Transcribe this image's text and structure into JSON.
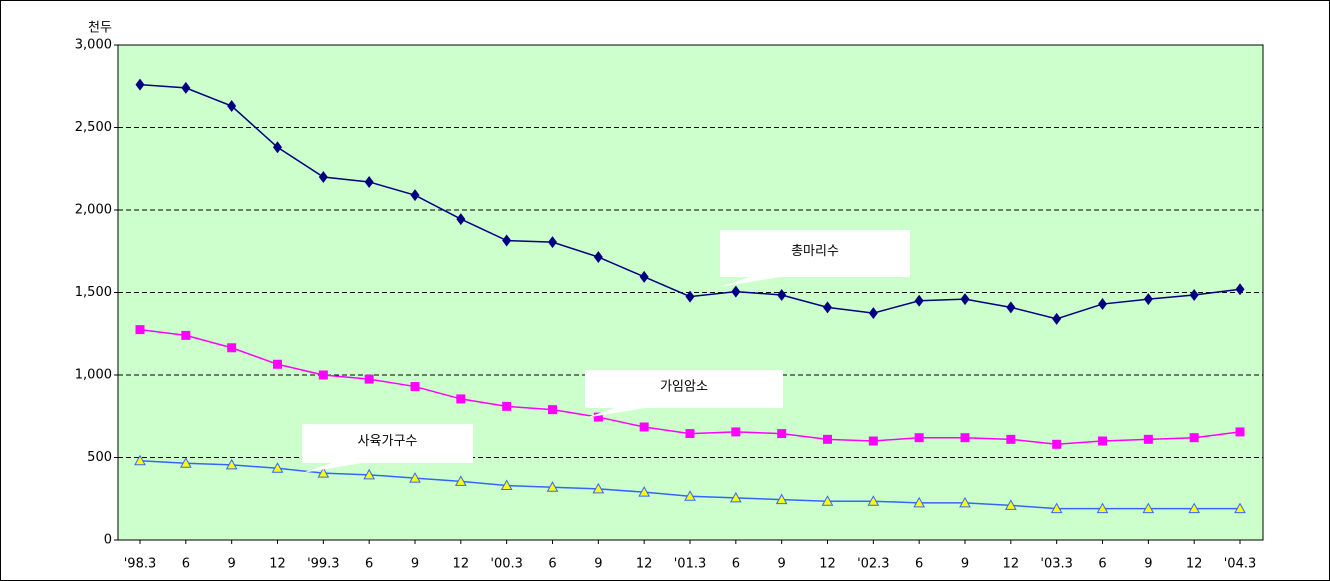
{
  "chart_data": {
    "type": "line",
    "y_label": "천두",
    "categories": [
      "'98.3",
      "6",
      "9",
      "12",
      "'99.3",
      "6",
      "9",
      "12",
      "'00.3",
      "6",
      "9",
      "12",
      "'01.3",
      "6",
      "9",
      "12",
      "'02.3",
      "6",
      "9",
      "12",
      "'03.3",
      "6",
      "9",
      "12",
      "'04.3"
    ],
    "series": [
      {
        "name": "총마리수",
        "color": "#000080",
        "marker": "diamond",
        "values": [
          2760,
          2740,
          2630,
          2380,
          2200,
          2170,
          2090,
          1945,
          1815,
          1805,
          1715,
          1595,
          1475,
          1505,
          1485,
          1410,
          1375,
          1450,
          1460,
          1410,
          1340,
          1430,
          1460,
          1485,
          1520
        ]
      },
      {
        "name": "가임암소",
        "color": "#ff00ff",
        "marker": "square",
        "values": [
          1275,
          1240,
          1165,
          1065,
          1000,
          975,
          930,
          855,
          810,
          790,
          745,
          685,
          645,
          655,
          645,
          610,
          600,
          620,
          620,
          610,
          580,
          600,
          610,
          620,
          655
        ]
      },
      {
        "name": "사육가구수",
        "color": "#3366ff",
        "marker": "triangle",
        "values": [
          480,
          465,
          455,
          435,
          405,
          395,
          375,
          355,
          330,
          320,
          310,
          290,
          265,
          255,
          245,
          235,
          235,
          225,
          225,
          210,
          190,
          190,
          190,
          190,
          190
        ]
      }
    ],
    "ylim": [
      0,
      3000
    ],
    "yticks": [
      0,
      500,
      {
        "value": 1000,
        "label": "1,000"
      },
      {
        "value": 1500,
        "label": "1,500"
      },
      {
        "value": 2000,
        "label": "2,000"
      },
      {
        "value": 2500,
        "label": "2,500"
      },
      {
        "value": 3000,
        "label": "3,000"
      }
    ],
    "grid": true,
    "plot_background": "#ccffcc"
  }
}
